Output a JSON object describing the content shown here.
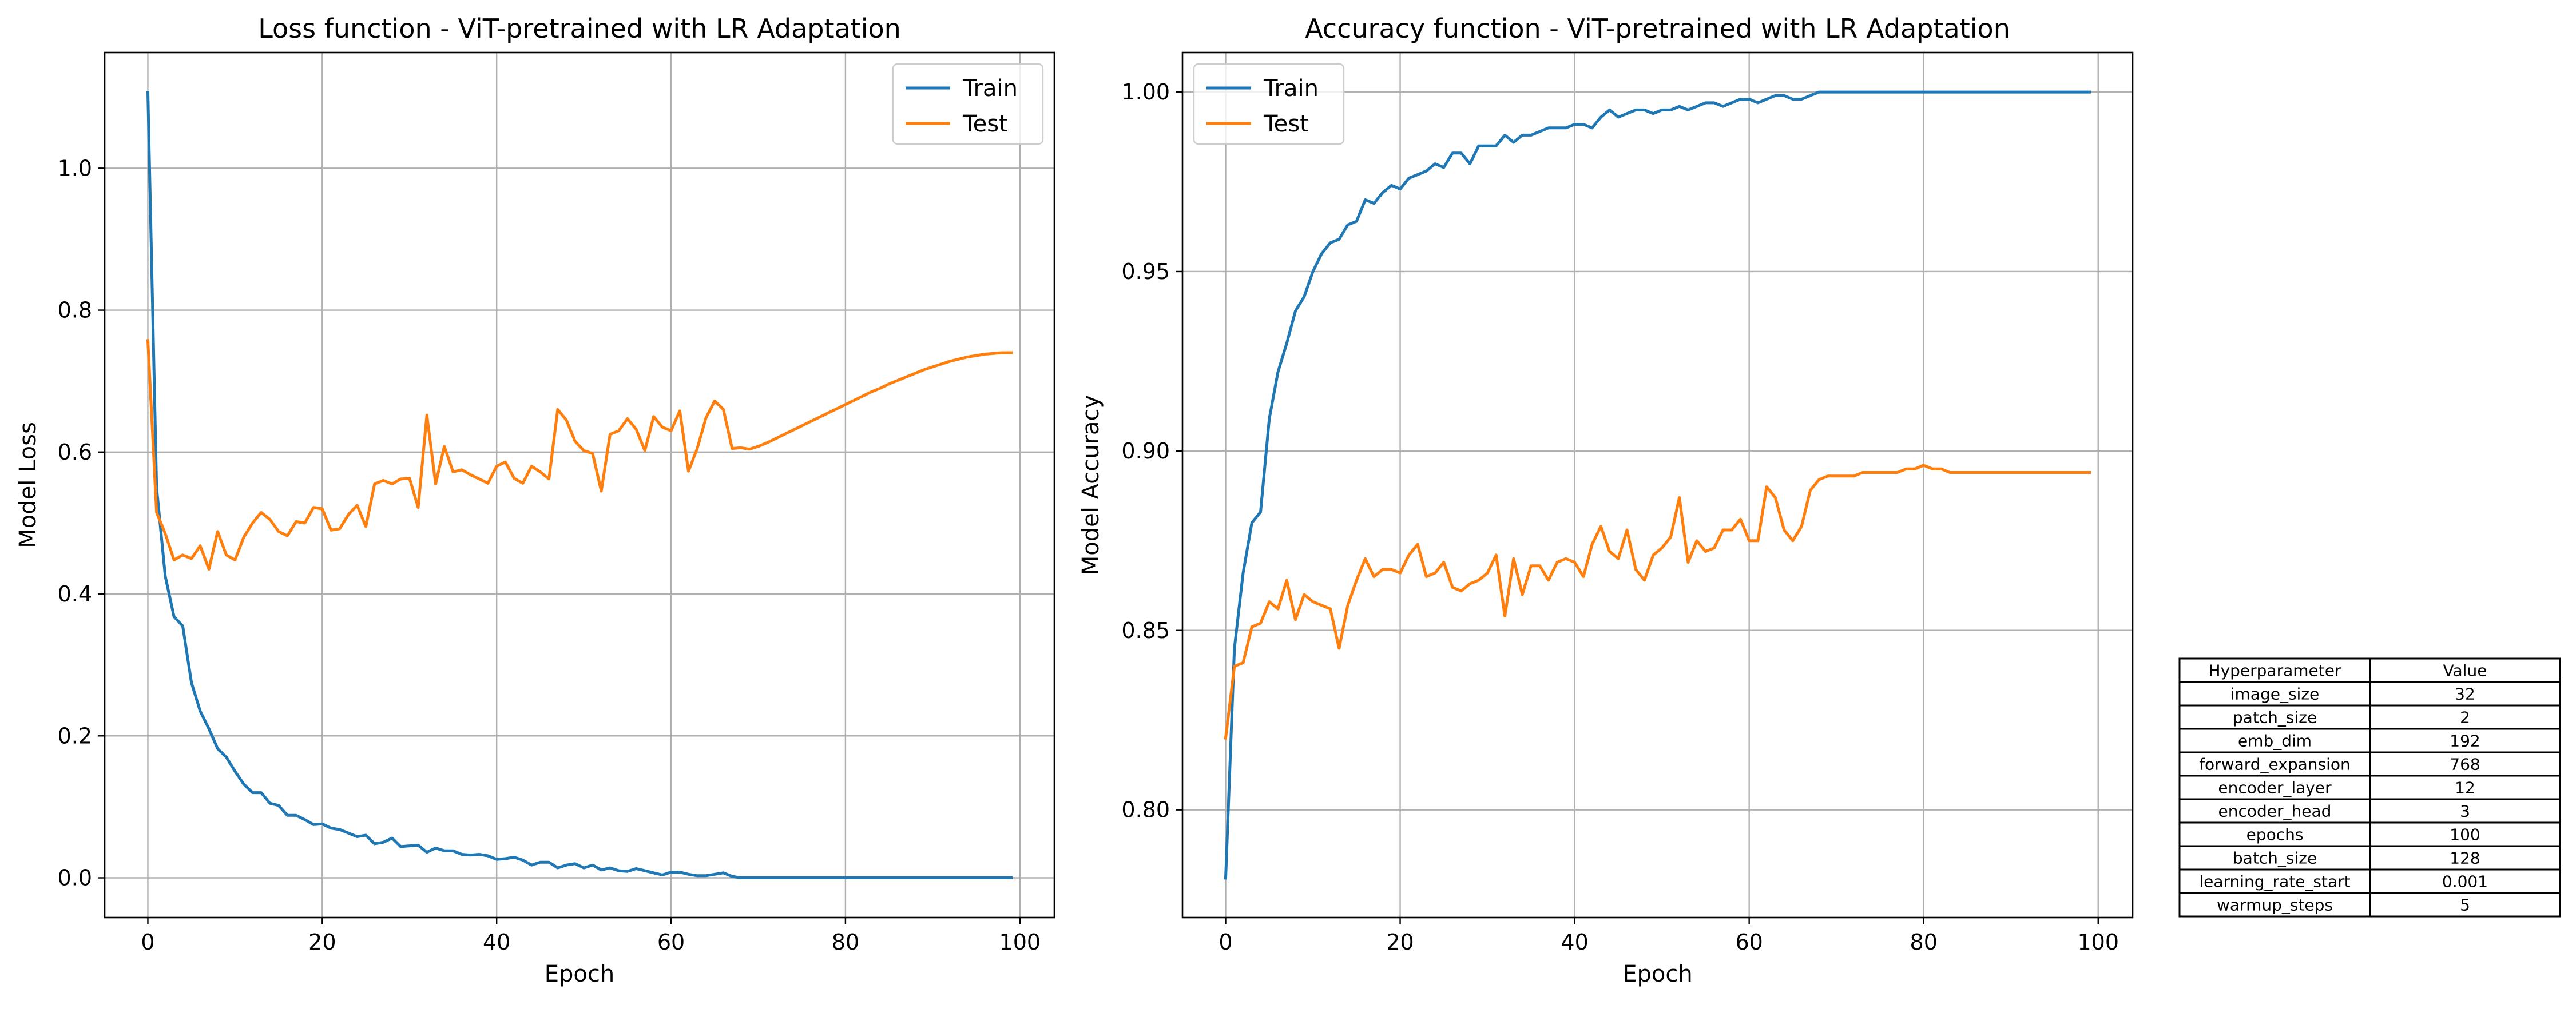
{
  "chart_data": [
    {
      "type": "line",
      "title": "Loss function - ViT-pretrained with LR Adaptation",
      "xlabel": "Epoch",
      "ylabel": "Model Loss",
      "xlim": [
        -4.95,
        103.95
      ],
      "ylim": [
        -0.056,
        1.163
      ],
      "xticks": [
        0,
        20,
        40,
        60,
        80,
        100
      ],
      "yticks": [
        0.0,
        0.2,
        0.4,
        0.6,
        0.8,
        1.0
      ],
      "xtick_labels": [
        "0",
        "20",
        "40",
        "60",
        "80",
        "100"
      ],
      "ytick_labels": [
        "0.0",
        "0.2",
        "0.4",
        "0.6",
        "0.8",
        "1.0"
      ],
      "grid": true,
      "legend": "top-right",
      "series": [
        {
          "name": "Train",
          "color": "#1f77b4",
          "values": [
            1.107,
            0.55,
            0.425,
            0.368,
            0.355,
            0.275,
            0.235,
            0.21,
            0.182,
            0.17,
            0.15,
            0.132,
            0.12,
            0.12,
            0.105,
            0.102,
            0.088,
            0.088,
            0.082,
            0.075,
            0.076,
            0.07,
            0.068,
            0.063,
            0.058,
            0.06,
            0.048,
            0.05,
            0.056,
            0.044,
            0.045,
            0.046,
            0.036,
            0.042,
            0.038,
            0.038,
            0.033,
            0.032,
            0.033,
            0.031,
            0.026,
            0.027,
            0.029,
            0.025,
            0.018,
            0.022,
            0.022,
            0.014,
            0.018,
            0.02,
            0.014,
            0.018,
            0.011,
            0.014,
            0.01,
            0.009,
            0.013,
            0.01,
            0.007,
            0.004,
            0.008,
            0.008,
            0.005,
            0.003,
            0.003,
            0.005,
            0.007,
            0.002,
            0.0,
            0.0,
            0.0,
            0.0,
            0.0,
            0.0,
            0.0,
            0.0,
            0.0,
            0.0,
            0.0,
            0.0,
            0.0,
            0.0,
            0.0,
            0.0,
            0.0,
            0.0,
            0.0,
            0.0,
            0.0,
            0.0,
            0.0,
            0.0,
            0.0,
            0.0,
            0.0,
            0.0,
            0.0,
            0.0,
            0.0,
            0.0
          ]
        },
        {
          "name": "Test",
          "color": "#ff7f0e",
          "values": [
            0.757,
            0.515,
            0.485,
            0.448,
            0.455,
            0.45,
            0.468,
            0.435,
            0.488,
            0.455,
            0.448,
            0.48,
            0.5,
            0.515,
            0.505,
            0.488,
            0.482,
            0.502,
            0.5,
            0.522,
            0.52,
            0.49,
            0.492,
            0.512,
            0.525,
            0.495,
            0.555,
            0.56,
            0.555,
            0.562,
            0.563,
            0.522,
            0.652,
            0.555,
            0.608,
            0.572,
            0.575,
            0.568,
            0.562,
            0.556,
            0.58,
            0.586,
            0.563,
            0.556,
            0.58,
            0.572,
            0.562,
            0.66,
            0.645,
            0.615,
            0.602,
            0.598,
            0.545,
            0.625,
            0.63,
            0.647,
            0.632,
            0.602,
            0.65,
            0.635,
            0.63,
            0.658,
            0.573,
            0.605,
            0.648,
            0.672,
            0.66,
            0.605,
            0.606,
            0.604,
            0.608,
            0.613,
            0.619,
            0.625,
            0.631,
            0.637,
            0.643,
            0.649,
            0.655,
            0.661,
            0.667,
            0.673,
            0.679,
            0.685,
            0.69,
            0.696,
            0.701,
            0.706,
            0.711,
            0.716,
            0.72,
            0.724,
            0.728,
            0.731,
            0.734,
            0.736,
            0.738,
            0.739,
            0.74,
            0.74
          ]
        }
      ]
    },
    {
      "type": "line",
      "title": "Accuracy function - ViT-pretrained with LR Adaptation",
      "xlabel": "Epoch",
      "ylabel": "Model Accuracy",
      "xlim": [
        -4.95,
        103.95
      ],
      "ylim": [
        0.77,
        1.011
      ],
      "xticks": [
        0,
        20,
        40,
        60,
        80,
        100
      ],
      "yticks": [
        0.8,
        0.85,
        0.9,
        0.95,
        1.0
      ],
      "xtick_labels": [
        "0",
        "20",
        "40",
        "60",
        "80",
        "100"
      ],
      "ytick_labels": [
        "0.80",
        "0.85",
        "0.90",
        "0.95",
        "1.00"
      ],
      "grid": true,
      "legend": "top-left",
      "series": [
        {
          "name": "Train",
          "color": "#1f77b4",
          "values": [
            0.781,
            0.845,
            0.866,
            0.88,
            0.883,
            0.909,
            0.922,
            0.93,
            0.939,
            0.943,
            0.95,
            0.955,
            0.958,
            0.959,
            0.963,
            0.964,
            0.97,
            0.969,
            0.972,
            0.974,
            0.973,
            0.976,
            0.977,
            0.978,
            0.98,
            0.979,
            0.983,
            0.983,
            0.98,
            0.985,
            0.985,
            0.985,
            0.988,
            0.986,
            0.988,
            0.988,
            0.989,
            0.99,
            0.99,
            0.99,
            0.991,
            0.991,
            0.99,
            0.993,
            0.995,
            0.993,
            0.994,
            0.995,
            0.995,
            0.994,
            0.995,
            0.995,
            0.996,
            0.995,
            0.996,
            0.997,
            0.997,
            0.996,
            0.997,
            0.998,
            0.998,
            0.997,
            0.998,
            0.999,
            0.999,
            0.998,
            0.998,
            0.999,
            1.0,
            1.0,
            1.0,
            1.0,
            1.0,
            1.0,
            1.0,
            1.0,
            1.0,
            1.0,
            1.0,
            1.0,
            1.0,
            1.0,
            1.0,
            1.0,
            1.0,
            1.0,
            1.0,
            1.0,
            1.0,
            1.0,
            1.0,
            1.0,
            1.0,
            1.0,
            1.0,
            1.0,
            1.0,
            1.0,
            1.0,
            1.0
          ]
        },
        {
          "name": "Test",
          "color": "#ff7f0e",
          "values": [
            0.82,
            0.84,
            0.841,
            0.851,
            0.852,
            0.858,
            0.856,
            0.864,
            0.853,
            0.86,
            0.858,
            0.857,
            0.856,
            0.845,
            0.857,
            0.864,
            0.87,
            0.865,
            0.867,
            0.867,
            0.866,
            0.871,
            0.874,
            0.865,
            0.866,
            0.869,
            0.862,
            0.861,
            0.863,
            0.864,
            0.866,
            0.871,
            0.854,
            0.87,
            0.86,
            0.868,
            0.868,
            0.864,
            0.869,
            0.87,
            0.869,
            0.865,
            0.874,
            0.879,
            0.872,
            0.87,
            0.878,
            0.867,
            0.864,
            0.871,
            0.873,
            0.876,
            0.887,
            0.869,
            0.875,
            0.872,
            0.873,
            0.878,
            0.878,
            0.881,
            0.875,
            0.875,
            0.89,
            0.887,
            0.878,
            0.875,
            0.879,
            0.889,
            0.892,
            0.893,
            0.893,
            0.893,
            0.893,
            0.894,
            0.894,
            0.894,
            0.894,
            0.894,
            0.895,
            0.895,
            0.896,
            0.895,
            0.895,
            0.894,
            0.894,
            0.894,
            0.894,
            0.894,
            0.894,
            0.894,
            0.894,
            0.894,
            0.894,
            0.894,
            0.894,
            0.894,
            0.894,
            0.894,
            0.894,
            0.894
          ]
        }
      ]
    },
    {
      "type": "table",
      "columns": [
        "Hyperparameter",
        "Value"
      ],
      "rows": [
        [
          "image_size",
          "32"
        ],
        [
          "patch_size",
          "2"
        ],
        [
          "emb_dim",
          "192"
        ],
        [
          "forward_expansion",
          "768"
        ],
        [
          "encoder_layer",
          "12"
        ],
        [
          "encoder_head",
          "3"
        ],
        [
          "epochs",
          "100"
        ],
        [
          "batch_size",
          "128"
        ],
        [
          "learning_rate_start",
          "0.001"
        ],
        [
          "warmup_steps",
          "5"
        ]
      ]
    }
  ]
}
